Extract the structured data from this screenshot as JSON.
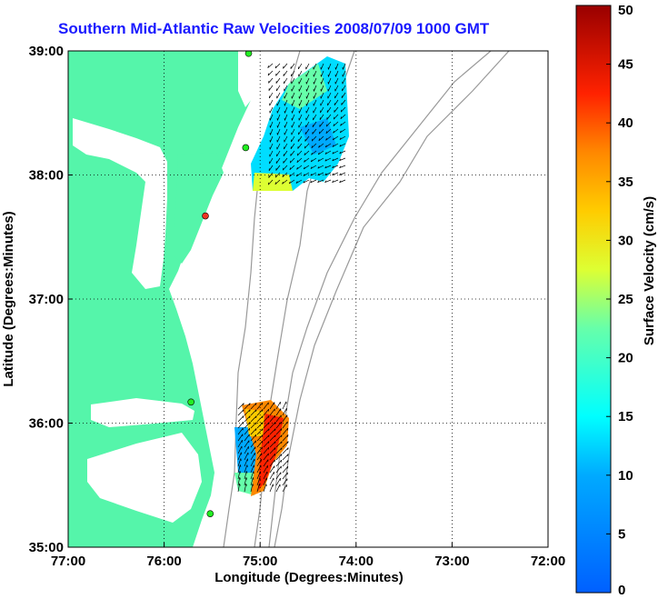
{
  "title": "Southern Mid-Atlantic Raw Velocities 2008/07/09 1000 GMT",
  "xlabel": "Longitude (Degrees:Minutes)",
  "ylabel": "Latitude (Degrees:Minutes)",
  "colorbar_label": "Surface Velocity (cm/s)",
  "x_ticks": [
    "77:00",
    "76:00",
    "75:00",
    "74:00",
    "73:00",
    "72:00"
  ],
  "y_ticks": [
    "39:00",
    "38:00",
    "37:00",
    "36:00",
    "35:00"
  ],
  "colorbar_ticks": [
    "50",
    "45",
    "40",
    "35",
    "30",
    "25",
    "20",
    "15",
    "10",
    "5",
    "0"
  ],
  "colors": {
    "land": "#55f5aa",
    "title": "#1a1aff",
    "bathymetry": "#999999",
    "station": "#22ee22",
    "station_alert": "#ee3322"
  },
  "map_data": {
    "lon_range": [
      -77,
      -72
    ],
    "lat_range": [
      35,
      39
    ],
    "velocity_range_cm_s": [
      0,
      50
    ],
    "grid": true,
    "stations": [
      {
        "lon": -75.12,
        "lat": 38.98,
        "status": "ok"
      },
      {
        "lon": -75.15,
        "lat": 38.22,
        "status": "ok"
      },
      {
        "lon": -75.57,
        "lat": 37.67,
        "status": "alert"
      },
      {
        "lon": -75.72,
        "lat": 36.17,
        "status": "ok"
      },
      {
        "lon": -75.52,
        "lat": 35.27,
        "status": "ok"
      }
    ]
  }
}
